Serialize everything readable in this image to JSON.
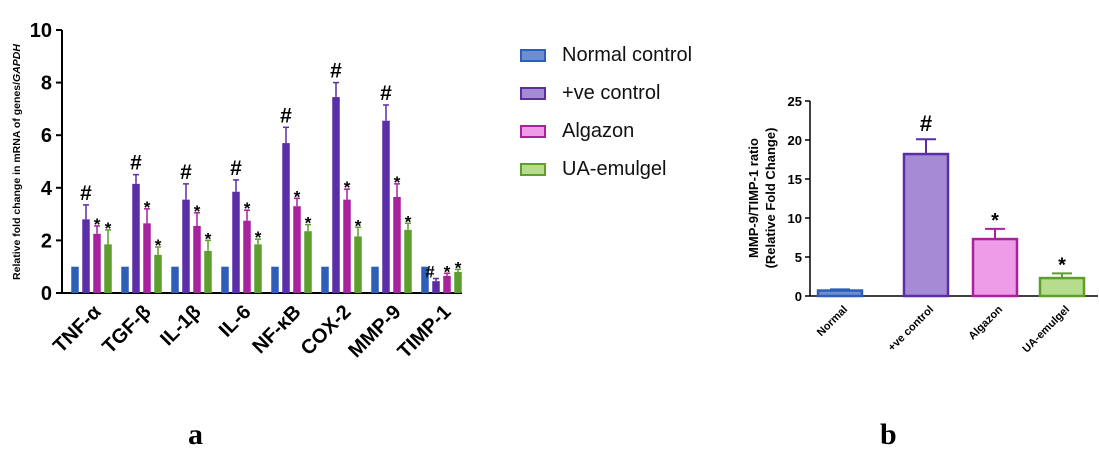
{
  "chart_data": [
    {
      "type": "bar",
      "panel_label": "a",
      "ylabel": "Relative fold change in mRNA of genes/",
      "ylabel_italic": "GAPDH",
      "xlabel": "",
      "ylim": [
        0,
        10
      ],
      "yticks": [
        "0",
        "2",
        "4",
        "6",
        "8",
        "10"
      ],
      "categories": [
        "TNF-α",
        "TGF-β",
        "IL-1β",
        "IL-6",
        "NF-κB",
        "COX-2",
        "MMP-9",
        "TIMP-1"
      ],
      "series": [
        {
          "name": "Normal control",
          "color": "#2c5fb5",
          "values": [
            1,
            1,
            1,
            1,
            1,
            1,
            1,
            1
          ],
          "errors": [
            0,
            0,
            0,
            0,
            0,
            0,
            0,
            0
          ],
          "marks": [
            "",
            "",
            "",
            "",
            "",
            "",
            "",
            ""
          ]
        },
        {
          "name": "+ve control",
          "color": "#5a2ea6",
          "values": [
            2.8,
            4.15,
            3.55,
            3.85,
            5.7,
            7.45,
            6.55,
            0.45
          ],
          "errors": [
            0.55,
            0.35,
            0.6,
            0.45,
            0.6,
            0.55,
            0.6,
            0.1
          ],
          "marks": [
            "#",
            "#",
            "#",
            "#",
            "#",
            "#",
            "#",
            "#"
          ]
        },
        {
          "name": "Algazon",
          "color": "#a8219d",
          "values": [
            2.25,
            2.65,
            2.55,
            2.75,
            3.3,
            3.55,
            3.65,
            0.65
          ],
          "errors": [
            0.3,
            0.55,
            0.5,
            0.4,
            0.3,
            0.4,
            0.5,
            0.1
          ],
          "marks": [
            "*",
            "*",
            "*",
            "*",
            "*",
            "*",
            "*",
            "*"
          ]
        },
        {
          "name": "UA-emulgel",
          "color": "#5e9e2f",
          "values": [
            1.85,
            1.45,
            1.6,
            1.85,
            2.35,
            2.15,
            2.4,
            0.8
          ],
          "errors": [
            0.55,
            0.3,
            0.4,
            0.2,
            0.25,
            0.35,
            0.25,
            0.1
          ],
          "marks": [
            "*",
            "*",
            "*",
            "*",
            "*",
            "*",
            "*",
            "*"
          ]
        }
      ]
    },
    {
      "type": "bar",
      "panel_label": "b",
      "ylabel_line1": "MMP-9/TIMP-1 ratio",
      "ylabel_line2": "(Relative Fold Change)",
      "xlabel": "",
      "ylim": [
        0,
        25
      ],
      "yticks": [
        "0",
        "5",
        "10",
        "15",
        "20",
        "25"
      ],
      "categories": [
        "Normal",
        "+ve control",
        "Algazon",
        "UA-emulgel"
      ],
      "values": [
        0.7,
        18.2,
        7.3,
        2.3
      ],
      "errors": [
        0.15,
        1.9,
        1.3,
        0.6
      ],
      "marks": [
        "",
        "#",
        "*",
        "*"
      ],
      "fills": [
        "#6b8fd0",
        "#a58bd6",
        "#ee9ce8",
        "#b6dc8e"
      ],
      "strokes": [
        "#2c5fb5",
        "#5a2ea6",
        "#a8219d",
        "#5e9e2f"
      ]
    }
  ],
  "legend": [
    {
      "label": "Normal control",
      "fill": "#6b8fd0",
      "stroke": "#2c5fb5"
    },
    {
      "label": "+ve control",
      "fill": "#a58bd6",
      "stroke": "#5a2ea6"
    },
    {
      "label": "Algazon",
      "fill": "#ee9ce8",
      "stroke": "#a8219d"
    },
    {
      "label": "UA-emulgel",
      "fill": "#b6dc8e",
      "stroke": "#5e9e2f"
    }
  ]
}
